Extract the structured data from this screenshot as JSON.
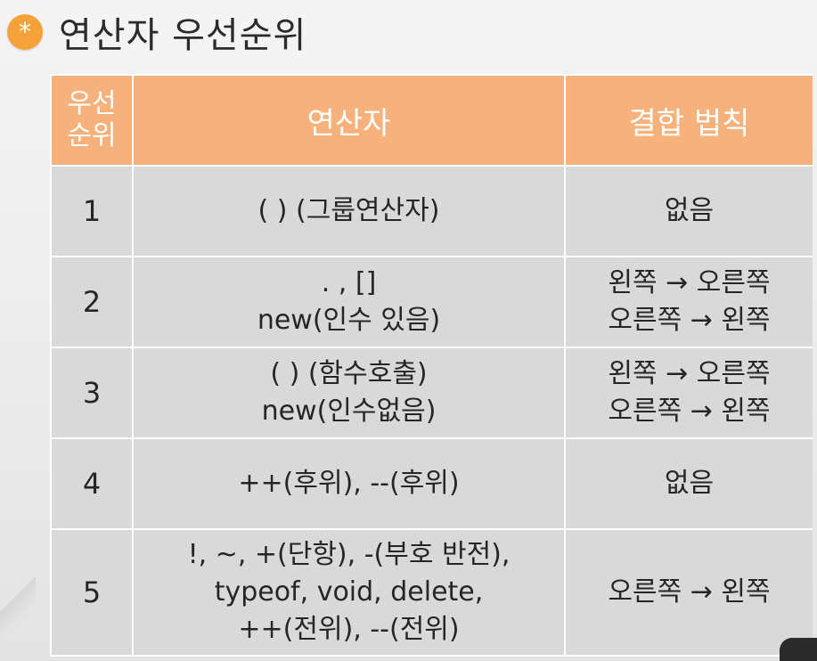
{
  "slide": {
    "icon": "star-icon",
    "icon_glyph": "*",
    "accent_color": "#f5a23a",
    "header_color": "#f7b27b",
    "cell_color": "#d9d9d9",
    "title": "연산자 우선순위"
  },
  "table": {
    "headers": {
      "rank_line1": "우선",
      "rank_line2": "순위",
      "operator": "연산자",
      "associativity": "결합 법칙"
    },
    "rows": [
      {
        "rank": "1",
        "operators": [
          "( ) (그룹연산자)"
        ],
        "associativity": [
          "없음"
        ]
      },
      {
        "rank": "2",
        "operators": [
          ". , []",
          "new(인수 있음)"
        ],
        "associativity": [
          "왼쪽 → 오른쪽",
          "오른쪽 → 왼쪽"
        ]
      },
      {
        "rank": "3",
        "operators": [
          "( ) (함수호출)",
          "new(인수없음)"
        ],
        "associativity": [
          "왼쪽 → 오른쪽",
          "오른쪽 → 왼쪽"
        ]
      },
      {
        "rank": "4",
        "operators": [
          "++(후위), --(후위)"
        ],
        "associativity": [
          "없음"
        ]
      },
      {
        "rank": "5",
        "operators": [
          "!, ~, +(단항), -(부호 반전),",
          "typeof, void, delete,",
          "++(전위), --(전위)"
        ],
        "associativity": [
          "오른쪽 → 왼쪽"
        ]
      }
    ]
  }
}
